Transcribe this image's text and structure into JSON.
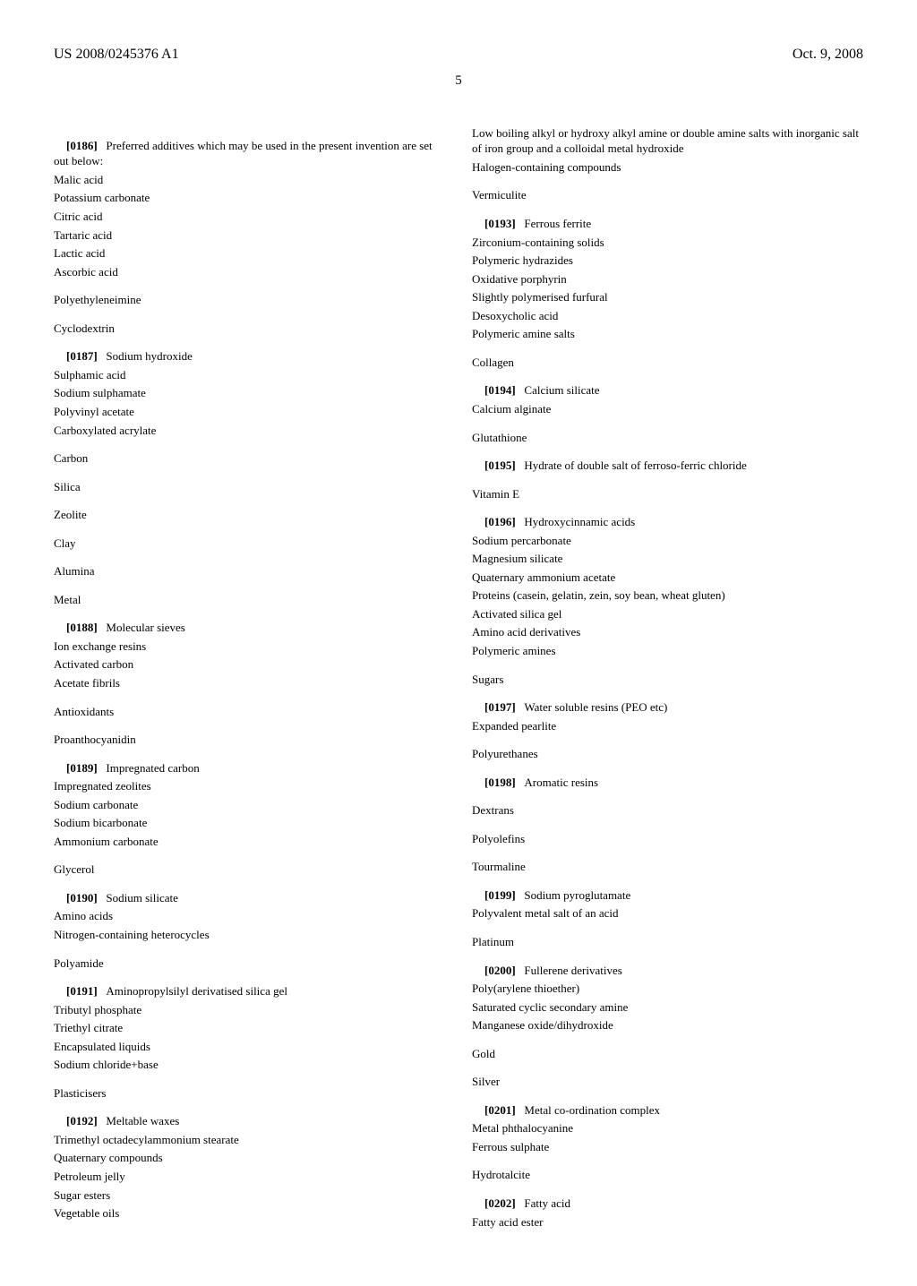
{
  "header": {
    "pub_number": "US 2008/0245376 A1",
    "date": "Oct. 9, 2008"
  },
  "page_number": "5",
  "left_column": [
    {
      "type": "para_with_num",
      "num": "[0186]",
      "text": "Preferred additives which may be used in the present invention are set out below:"
    },
    {
      "type": "line",
      "text": "Malic acid"
    },
    {
      "type": "line",
      "text": "Potassium carbonate"
    },
    {
      "type": "line",
      "text": "Citric acid"
    },
    {
      "type": "line",
      "text": "Tartaric acid"
    },
    {
      "type": "line",
      "text": "Lactic acid"
    },
    {
      "type": "line",
      "text": "Ascorbic acid"
    },
    {
      "type": "heading",
      "text": "Polyethyleneimine"
    },
    {
      "type": "heading",
      "text": "Cyclodextrin"
    },
    {
      "type": "para_with_num",
      "num": "[0187]",
      "text": "Sodium hydroxide"
    },
    {
      "type": "line",
      "text": "Sulphamic acid"
    },
    {
      "type": "line",
      "text": "Sodium sulphamate"
    },
    {
      "type": "line",
      "text": "Polyvinyl acetate"
    },
    {
      "type": "line",
      "text": "Carboxylated acrylate"
    },
    {
      "type": "heading",
      "text": "Carbon"
    },
    {
      "type": "heading",
      "text": "Silica"
    },
    {
      "type": "heading",
      "text": "Zeolite"
    },
    {
      "type": "heading",
      "text": "Clay"
    },
    {
      "type": "heading",
      "text": "Alumina"
    },
    {
      "type": "heading",
      "text": "Metal"
    },
    {
      "type": "para_with_num",
      "num": "[0188]",
      "text": "Molecular sieves"
    },
    {
      "type": "line",
      "text": "Ion exchange resins"
    },
    {
      "type": "line",
      "text": "Activated carbon"
    },
    {
      "type": "line",
      "text": "Acetate fibrils"
    },
    {
      "type": "heading",
      "text": "Antioxidants"
    },
    {
      "type": "heading",
      "text": "Proanthocyanidin"
    },
    {
      "type": "para_with_num",
      "num": "[0189]",
      "text": "Impregnated carbon"
    },
    {
      "type": "line",
      "text": "Impregnated zeolites"
    },
    {
      "type": "line",
      "text": "Sodium carbonate"
    },
    {
      "type": "line",
      "text": "Sodium bicarbonate"
    },
    {
      "type": "line",
      "text": "Ammonium carbonate"
    },
    {
      "type": "heading",
      "text": "Glycerol"
    },
    {
      "type": "para_with_num",
      "num": "[0190]",
      "text": "Sodium silicate"
    },
    {
      "type": "line",
      "text": "Amino acids"
    },
    {
      "type": "line",
      "text": "Nitrogen-containing heterocycles"
    },
    {
      "type": "heading",
      "text": "Polyamide"
    },
    {
      "type": "para_with_num",
      "num": "[0191]",
      "text": "Aminopropylsilyl derivatised silica gel"
    },
    {
      "type": "line",
      "text": "Tributyl phosphate"
    },
    {
      "type": "line",
      "text": "Triethyl citrate"
    },
    {
      "type": "line",
      "text": "Encapsulated liquids"
    },
    {
      "type": "line",
      "text": "Sodium chloride+base"
    },
    {
      "type": "heading",
      "text": "Plasticisers"
    },
    {
      "type": "para_with_num",
      "num": "[0192]",
      "text": "Meltable waxes"
    },
    {
      "type": "line",
      "text": "Trimethyl octadecylammonium stearate"
    },
    {
      "type": "line",
      "text": "Quaternary compounds"
    },
    {
      "type": "line",
      "text": "Petroleum jelly"
    },
    {
      "type": "line",
      "text": "Sugar esters"
    },
    {
      "type": "line",
      "text": "Vegetable oils"
    }
  ],
  "right_column": [
    {
      "type": "line",
      "text": "Low boiling alkyl or hydroxy alkyl amine or double amine salts with inorganic salt of iron group and a colloidal metal hydroxide"
    },
    {
      "type": "line",
      "text": "Halogen-containing compounds"
    },
    {
      "type": "heading",
      "text": "Vermiculite"
    },
    {
      "type": "para_with_num",
      "num": "[0193]",
      "text": "Ferrous ferrite"
    },
    {
      "type": "line",
      "text": "Zirconium-containing solids"
    },
    {
      "type": "line",
      "text": "Polymeric hydrazides"
    },
    {
      "type": "line",
      "text": "Oxidative porphyrin"
    },
    {
      "type": "line",
      "text": "Slightly polymerised furfural"
    },
    {
      "type": "line",
      "text": "Desoxycholic acid"
    },
    {
      "type": "line",
      "text": "Polymeric amine salts"
    },
    {
      "type": "heading",
      "text": "Collagen"
    },
    {
      "type": "para_with_num",
      "num": "[0194]",
      "text": "Calcium silicate"
    },
    {
      "type": "line",
      "text": "Calcium alginate"
    },
    {
      "type": "heading",
      "text": "Glutathione"
    },
    {
      "type": "para_with_num",
      "num": "[0195]",
      "text": "Hydrate of double salt of ferroso-ferric chloride"
    },
    {
      "type": "heading",
      "text": "Vitamin E"
    },
    {
      "type": "para_with_num",
      "num": "[0196]",
      "text": "Hydroxycinnamic acids"
    },
    {
      "type": "line",
      "text": "Sodium percarbonate"
    },
    {
      "type": "line",
      "text": "Magnesium silicate"
    },
    {
      "type": "line",
      "text": "Quaternary ammonium acetate"
    },
    {
      "type": "line",
      "text": "Proteins (casein, gelatin, zein, soy bean, wheat gluten)"
    },
    {
      "type": "line",
      "text": "Activated silica gel"
    },
    {
      "type": "line",
      "text": "Amino acid derivatives"
    },
    {
      "type": "line",
      "text": "Polymeric amines"
    },
    {
      "type": "heading",
      "text": "Sugars"
    },
    {
      "type": "para_with_num",
      "num": "[0197]",
      "text": "Water soluble resins (PEO etc)"
    },
    {
      "type": "line",
      "text": "Expanded pearlite"
    },
    {
      "type": "heading",
      "text": "Polyurethanes"
    },
    {
      "type": "para_with_num",
      "num": "[0198]",
      "text": "Aromatic resins"
    },
    {
      "type": "heading",
      "text": "Dextrans"
    },
    {
      "type": "heading",
      "text": "Polyolefins"
    },
    {
      "type": "heading",
      "text": "Tourmaline"
    },
    {
      "type": "para_with_num",
      "num": "[0199]",
      "text": "Sodium pyroglutamate"
    },
    {
      "type": "line",
      "text": "Polyvalent metal salt of an acid"
    },
    {
      "type": "heading",
      "text": "Platinum"
    },
    {
      "type": "para_with_num",
      "num": "[0200]",
      "text": "Fullerene derivatives"
    },
    {
      "type": "line",
      "text": "Poly(arylene thioether)"
    },
    {
      "type": "line",
      "text": "Saturated cyclic secondary amine"
    },
    {
      "type": "line",
      "text": "Manganese oxide/dihydroxide"
    },
    {
      "type": "heading",
      "text": "Gold"
    },
    {
      "type": "heading",
      "text": "Silver"
    },
    {
      "type": "para_with_num",
      "num": "[0201]",
      "text": "Metal co-ordination complex"
    },
    {
      "type": "line",
      "text": "Metal phthalocyanine"
    },
    {
      "type": "line",
      "text": "Ferrous sulphate"
    },
    {
      "type": "heading",
      "text": "Hydrotalcite"
    },
    {
      "type": "para_with_num",
      "num": "[0202]",
      "text": "Fatty acid"
    },
    {
      "type": "line",
      "text": "Fatty acid ester"
    }
  ]
}
